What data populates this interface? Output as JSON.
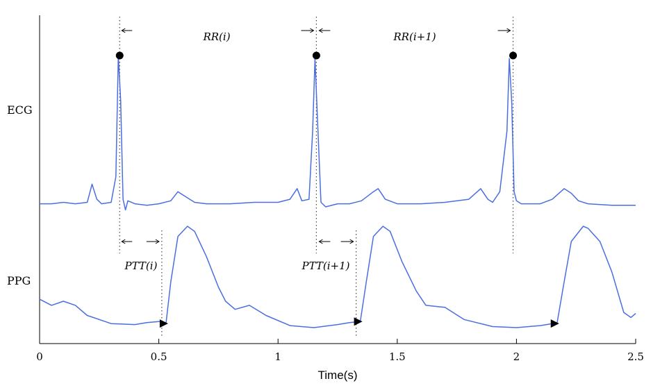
{
  "chart_data": {
    "type": "line",
    "title": "",
    "xlabel": "Time(s)",
    "ylabel": "",
    "xlim": [
      0,
      2.5
    ],
    "x_ticks": [
      "0",
      "0.5",
      "1",
      "1.5",
      "2",
      "2.5"
    ],
    "grid": false,
    "legend": "none",
    "series": [
      {
        "name": "ECG",
        "color": "#4a6ee0",
        "r_peak_times": [
          0.33,
          1.155,
          1.98
        ],
        "x": [
          0.0,
          0.05,
          0.1,
          0.15,
          0.2,
          0.22,
          0.24,
          0.26,
          0.3,
          0.32,
          0.33,
          0.34,
          0.35,
          0.36,
          0.37,
          0.4,
          0.45,
          0.5,
          0.55,
          0.58,
          0.6,
          0.65,
          0.7,
          0.8,
          0.9,
          1.0,
          1.05,
          1.08,
          1.1,
          1.13,
          1.145,
          1.155,
          1.165,
          1.18,
          1.2,
          1.25,
          1.3,
          1.35,
          1.4,
          1.42,
          1.45,
          1.5,
          1.6,
          1.7,
          1.8,
          1.85,
          1.88,
          1.9,
          1.93,
          1.96,
          1.97,
          1.98,
          1.99,
          2.0,
          2.02,
          2.05,
          2.1,
          2.15,
          2.2,
          2.23,
          2.26,
          2.3,
          2.4,
          2.5
        ],
        "values": [
          0.02,
          0.02,
          0.03,
          0.02,
          0.03,
          0.15,
          0.05,
          0.02,
          0.03,
          0.2,
          1.0,
          0.7,
          0.05,
          -0.02,
          0.04,
          0.02,
          0.01,
          0.02,
          0.04,
          0.1,
          0.08,
          0.03,
          0.02,
          0.02,
          0.03,
          0.03,
          0.05,
          0.12,
          0.04,
          0.05,
          0.5,
          0.98,
          0.6,
          0.03,
          0.0,
          0.02,
          0.02,
          0.04,
          0.1,
          0.12,
          0.05,
          0.02,
          0.02,
          0.03,
          0.05,
          0.12,
          0.05,
          0.03,
          0.1,
          0.5,
          0.98,
          0.7,
          0.1,
          0.04,
          0.02,
          0.02,
          0.02,
          0.05,
          0.12,
          0.09,
          0.04,
          0.02,
          0.01,
          0.01
        ]
      },
      {
        "name": "PPG",
        "color": "#4a6ee0",
        "foot_times": [
          0.53,
          1.345,
          2.17
        ],
        "x": [
          0.0,
          0.05,
          0.1,
          0.15,
          0.2,
          0.3,
          0.4,
          0.45,
          0.5,
          0.53,
          0.55,
          0.58,
          0.62,
          0.65,
          0.7,
          0.75,
          0.78,
          0.82,
          0.88,
          0.95,
          1.05,
          1.15,
          1.25,
          1.3,
          1.345,
          1.37,
          1.4,
          1.44,
          1.47,
          1.52,
          1.58,
          1.62,
          1.7,
          1.78,
          1.9,
          2.0,
          2.1,
          2.15,
          2.17,
          2.2,
          2.23,
          2.28,
          2.3,
          2.35,
          2.4,
          2.45,
          2.48,
          2.5
        ],
        "values": [
          0.28,
          0.22,
          0.26,
          0.22,
          0.12,
          0.04,
          0.03,
          0.05,
          0.06,
          0.04,
          0.45,
          0.9,
          1.0,
          0.95,
          0.7,
          0.4,
          0.26,
          0.18,
          0.22,
          0.12,
          0.02,
          0.0,
          0.03,
          0.05,
          0.06,
          0.45,
          0.9,
          1.0,
          0.95,
          0.65,
          0.36,
          0.22,
          0.2,
          0.08,
          0.01,
          0.0,
          0.02,
          0.04,
          0.04,
          0.45,
          0.85,
          1.0,
          0.98,
          0.85,
          0.55,
          0.15,
          0.1,
          0.14
        ]
      }
    ],
    "annotations": {
      "rr_labels": [
        "RR(i)",
        "RR(i+1)"
      ],
      "ptt_labels": [
        "PTT(i)",
        "PTT(i+1)"
      ]
    }
  }
}
